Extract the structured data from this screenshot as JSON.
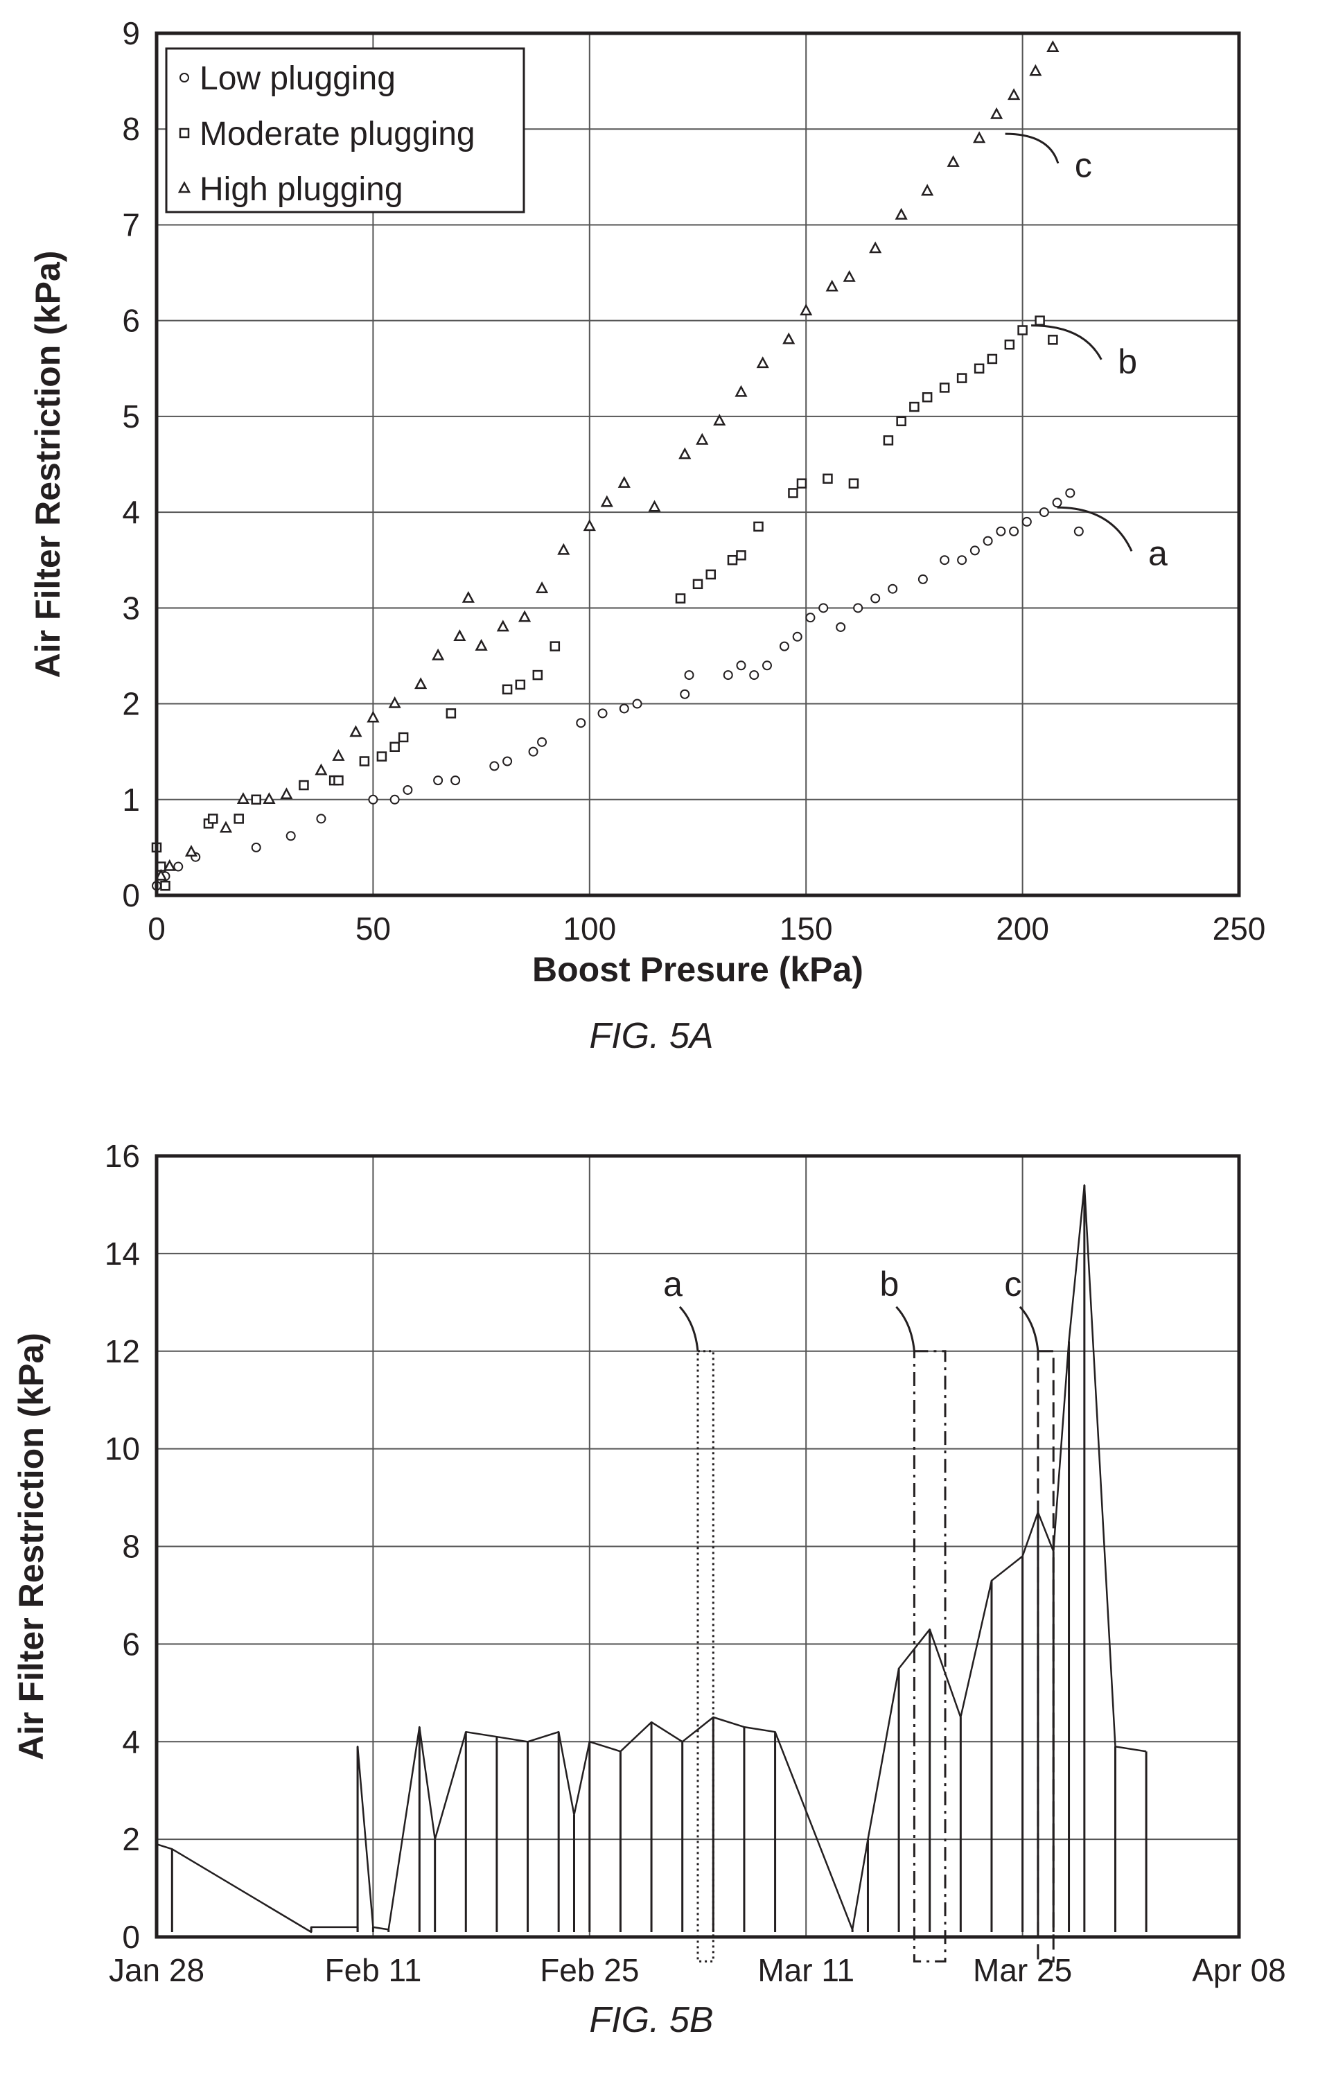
{
  "figures": [
    {
      "caption": "FIG. 5A",
      "chart_data": {
        "type": "scatter",
        "xlabel": "Boost Presure (kPa)",
        "ylabel": "Air Filter Restriction (kPa)",
        "xlim": [
          0,
          250
        ],
        "ylim": [
          0,
          9
        ],
        "xticks": [
          0,
          50,
          100,
          150,
          200,
          250
        ],
        "yticks": [
          0,
          1,
          2,
          3,
          4,
          5,
          6,
          7,
          8,
          9
        ],
        "tick_labels_x": [
          "0",
          "50",
          "100",
          "150",
          "200",
          "250"
        ],
        "tick_labels_y": [
          "0",
          "1",
          "2",
          "3",
          "4",
          "5",
          "6",
          "7",
          "8",
          "9"
        ],
        "grid": true,
        "legend_position": "top-left",
        "series": [
          {
            "name": "Low plugging",
            "marker": "circle",
            "callout": "a",
            "x": [
              0,
              1,
              2,
              5,
              9,
              23,
              31,
              38,
              50,
              55,
              58,
              65,
              69,
              78,
              81,
              87,
              89,
              98,
              103,
              108,
              111,
              122,
              123,
              132,
              135,
              138,
              141,
              145,
              148,
              151,
              154,
              158,
              162,
              166,
              170,
              177,
              182,
              186,
              189,
              192,
              195,
              198,
              201,
              205,
              208,
              211,
              213
            ],
            "y": [
              0.1,
              0.25,
              0.2,
              0.3,
              0.4,
              0.5,
              0.62,
              0.8,
              1.0,
              1.0,
              1.1,
              1.2,
              1.2,
              1.35,
              1.4,
              1.5,
              1.6,
              1.8,
              1.9,
              1.95,
              2.0,
              2.1,
              2.3,
              2.3,
              2.4,
              2.3,
              2.4,
              2.6,
              2.7,
              2.9,
              3.0,
              2.8,
              3.0,
              3.1,
              3.2,
              3.3,
              3.5,
              3.5,
              3.6,
              3.7,
              3.8,
              3.8,
              3.9,
              4.0,
              4.1,
              4.2,
              3.8
            ]
          },
          {
            "name": "Moderate plugging",
            "marker": "square",
            "callout": "b",
            "x": [
              0,
              1,
              2,
              12,
              13,
              19,
              23,
              34,
              41,
              42,
              48,
              52,
              55,
              57,
              68,
              81,
              84,
              88,
              92,
              121,
              125,
              128,
              133,
              135,
              139,
              147,
              149,
              155,
              161,
              169,
              172,
              175,
              178,
              182,
              186,
              190,
              193,
              197,
              200,
              204,
              207
            ],
            "y": [
              0.5,
              0.3,
              0.1,
              0.75,
              0.8,
              0.8,
              1.0,
              1.15,
              1.2,
              1.2,
              1.4,
              1.45,
              1.55,
              1.65,
              1.9,
              2.15,
              2.2,
              2.3,
              2.6,
              3.1,
              3.25,
              3.35,
              3.5,
              3.55,
              3.85,
              4.2,
              4.3,
              4.35,
              4.3,
              4.75,
              4.95,
              5.1,
              5.2,
              5.3,
              5.4,
              5.5,
              5.6,
              5.75,
              5.9,
              6.0,
              5.8
            ]
          },
          {
            "name": "High plugging",
            "marker": "triangle",
            "callout": "c",
            "x": [
              1,
              3,
              8,
              16,
              20,
              26,
              30,
              38,
              42,
              46,
              50,
              55,
              61,
              65,
              70,
              72,
              75,
              80,
              85,
              89,
              94,
              100,
              104,
              108,
              115,
              122,
              126,
              130,
              135,
              140,
              146,
              150,
              156,
              160,
              166,
              172,
              178,
              184,
              190,
              194,
              198,
              203,
              207
            ],
            "y": [
              0.2,
              0.3,
              0.45,
              0.7,
              1.0,
              1.0,
              1.05,
              1.3,
              1.45,
              1.7,
              1.85,
              2.0,
              2.2,
              2.5,
              2.7,
              3.1,
              2.6,
              2.8,
              2.9,
              3.2,
              3.6,
              3.85,
              4.1,
              4.3,
              4.05,
              4.6,
              4.75,
              4.95,
              5.25,
              5.55,
              5.8,
              6.1,
              6.35,
              6.45,
              6.75,
              7.1,
              7.35,
              7.65,
              7.9,
              8.15,
              8.35,
              8.6,
              8.85
            ]
          }
        ],
        "annotations": [
          {
            "text": "a",
            "x": 230,
            "y": 3.55
          },
          {
            "text": "b",
            "x": 223,
            "y": 5.55
          },
          {
            "text": "c",
            "x": 213,
            "y": 7.6
          }
        ]
      }
    },
    {
      "caption": "FIG. 5B",
      "chart_data": {
        "type": "line",
        "xlabel": "",
        "ylabel": "Air Filter Restriction (kPa)",
        "ylim": [
          0,
          16
        ],
        "yticks": [
          0,
          2,
          4,
          6,
          8,
          10,
          12,
          14,
          16
        ],
        "tick_labels_y": [
          "0",
          "2",
          "4",
          "6",
          "8",
          "10",
          "12",
          "14",
          "16"
        ],
        "x_axis_type": "date",
        "xlim": [
          "Jan 28",
          "Apr 08"
        ],
        "xticks": [
          "Jan 28",
          "Feb 11",
          "Feb 25",
          "Mar 11",
          "Mar 25",
          "Apr 08"
        ],
        "grid": true,
        "regions": [
          {
            "label": "a",
            "style": "dotted",
            "start": "Mar 4",
            "end": "Mar 5"
          },
          {
            "label": "b",
            "style": "dash-dot",
            "start": "Mar 18",
            "end": "Mar 20"
          },
          {
            "label": "c",
            "style": "dashed",
            "start": "Mar 26",
            "end": "Mar 27"
          }
        ],
        "series": [
          {
            "name": "",
            "x": [
              "Jan 28",
              "Jan 28",
              "Jan 29",
              "Feb 7",
              "Feb 7",
              "Feb 10",
              "Feb 10",
              "Feb 11",
              "Feb 12",
              "Feb 14",
              "Feb 15",
              "Feb 17",
              "Feb 19",
              "Feb 21",
              "Feb 23",
              "Feb 24",
              "Feb 25",
              "Feb 27",
              "Mar 1",
              "Mar 3",
              "Mar 5",
              "Mar 7",
              "Mar 9",
              "Mar 14",
              "Mar 15",
              "Mar 17",
              "Mar 19",
              "Mar 21",
              "Mar 23",
              "Mar 25",
              "Mar 26",
              "Mar 27",
              "Mar 28",
              "Mar 29",
              "Mar 31",
              "Apr 2"
            ],
            "y": [
              0.6,
              1.9,
              1.8,
              0.1,
              0.2,
              0.2,
              3.9,
              0.2,
              0.15,
              4.3,
              2.0,
              4.2,
              4.1,
              4.0,
              4.2,
              2.5,
              4.0,
              3.8,
              4.4,
              4.0,
              4.5,
              4.3,
              4.2,
              0.15,
              2.0,
              5.5,
              6.3,
              4.5,
              7.3,
              7.8,
              8.7,
              7.9,
              12.2,
              15.4,
              3.9,
              3.8
            ]
          }
        ]
      }
    }
  ]
}
